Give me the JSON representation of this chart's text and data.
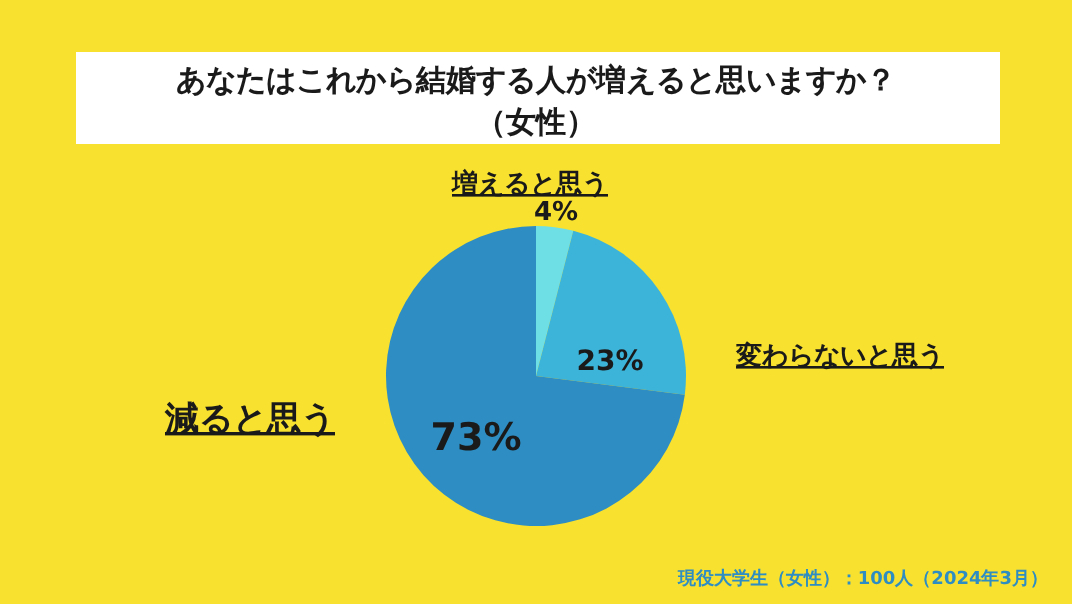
{
  "chart_data": {
    "type": "pie",
    "title": "あなたはこれから結婚する人が増えると思いますか？（女性）",
    "categories": [
      "増えると思う",
      "変わらないと思う",
      "減ると思う"
    ],
    "values": [
      4,
      23,
      73
    ],
    "colors": [
      "#6fdfe6",
      "#3cb4d9",
      "#2e8dc2"
    ],
    "value_labels": [
      "4%",
      "23%",
      "73%"
    ],
    "annotations": [
      "現役大学生（女性）：100人（2024年3月）"
    ]
  }
}
